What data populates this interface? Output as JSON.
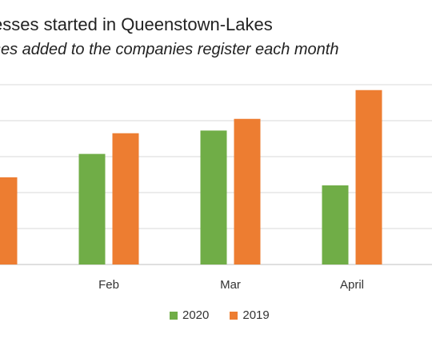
{
  "chart_data": {
    "type": "bar",
    "title": "esses started in Queenstown-Lakes",
    "subtitle": "ses added to the companies register each month",
    "categories": [
      "",
      "Feb",
      "Mar",
      "April"
    ],
    "series": [
      {
        "name": "2020",
        "color": "#70ad47",
        "values": [
          null,
          123,
          149,
          88
        ]
      },
      {
        "name": "2019",
        "color": "#ed7d31",
        "values": [
          97,
          146,
          162,
          194
        ]
      }
    ],
    "ylim": [
      0,
      200
    ],
    "grid": true,
    "legend_position": "bottom"
  }
}
